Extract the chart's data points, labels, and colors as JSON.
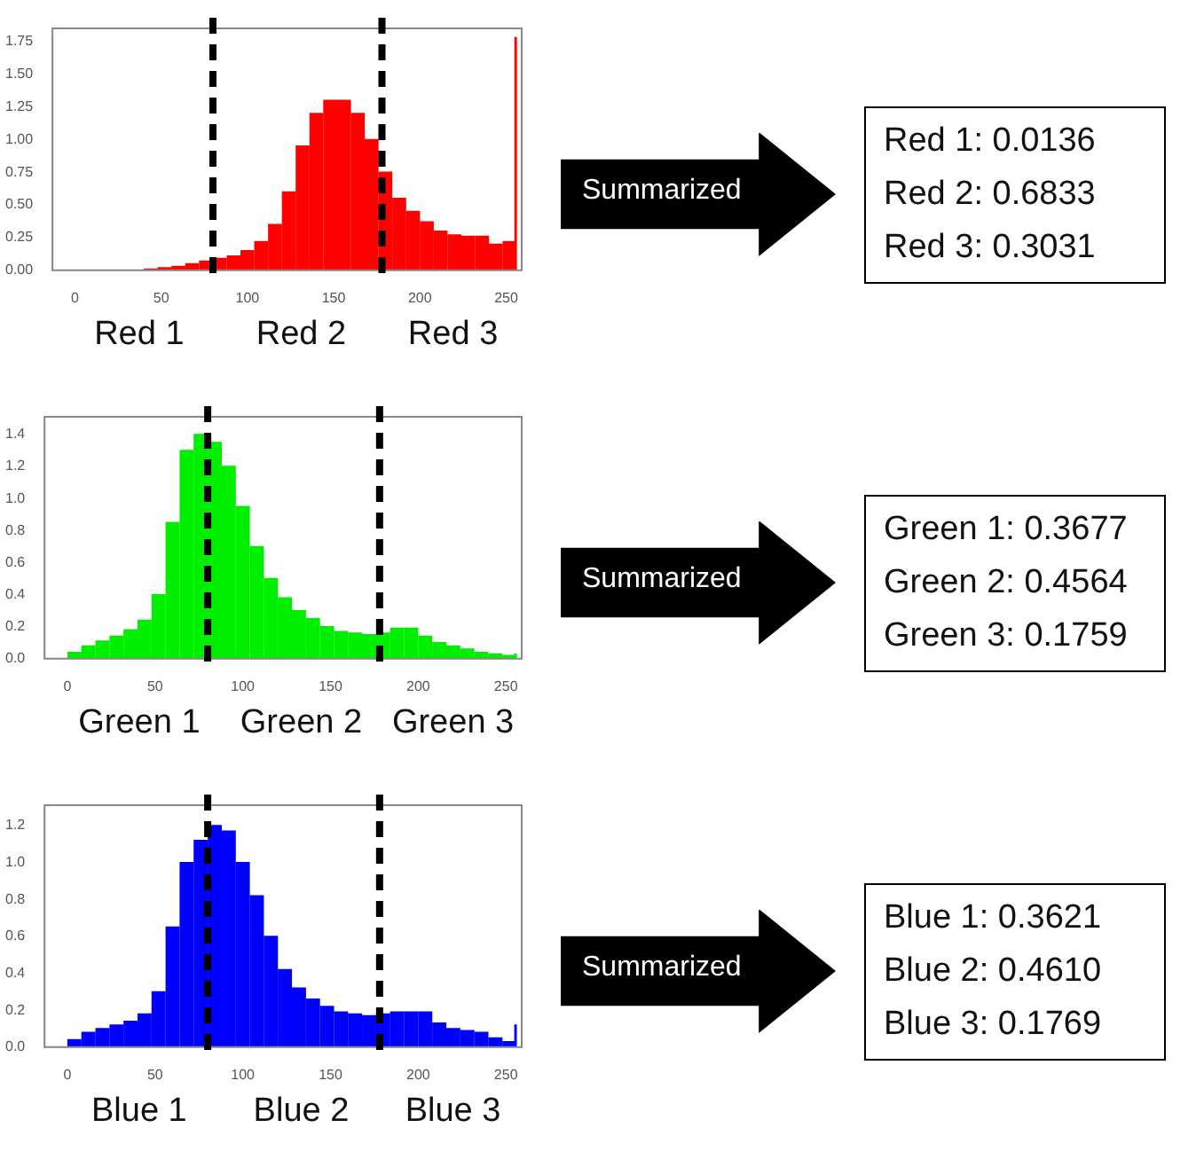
{
  "chart_data": [
    {
      "type": "histogram",
      "bins": [
        0,
        8,
        16,
        24,
        32,
        40,
        48,
        56,
        64,
        72,
        80,
        88,
        96,
        104,
        112,
        120,
        128,
        136,
        144,
        152,
        160,
        168,
        176,
        184,
        192,
        200,
        208,
        216,
        224,
        232,
        240,
        248,
        255,
        256
      ],
      "values": [
        0,
        0,
        0,
        0,
        0,
        0.01,
        0.02,
        0.03,
        0.05,
        0.07,
        0.09,
        0.11,
        0.15,
        0.22,
        0.35,
        0.6,
        0.95,
        1.2,
        1.3,
        1.3,
        1.2,
        1.0,
        0.75,
        0.55,
        0.45,
        0.37,
        0.3,
        0.27,
        0.26,
        0.26,
        0.2,
        0.22,
        1.78
      ],
      "color": "#ff0000",
      "xlim": [
        -13,
        259
      ],
      "xticks": [
        0,
        50,
        100,
        150,
        200,
        250
      ],
      "ylim": [
        0,
        1.85
      ],
      "yticks": [
        {
          "value": 0,
          "label": "0.00"
        },
        {
          "value": 0.25,
          "label": "0.25"
        },
        {
          "value": 0.5,
          "label": "0.50"
        },
        {
          "value": 0.75,
          "label": "0.75"
        },
        {
          "value": 1,
          "label": "1.00"
        },
        {
          "value": 1.25,
          "label": "1.25"
        },
        {
          "value": 1.5,
          "label": "1.50"
        },
        {
          "value": 1.75,
          "label": "1.75"
        }
      ],
      "ref_lines": [
        {
          "axis": "x",
          "value": 80,
          "color": "#000000",
          "line_style": "dashed"
        },
        {
          "axis": "x",
          "value": 178,
          "color": "#000000",
          "line_style": "dashed"
        }
      ],
      "annotations": [
        "Red 1",
        "Red 2",
        "Red 3"
      ]
    },
    {
      "type": "other",
      "annotations": [
        "Summarized",
        "Red 1: 0.0136",
        "Red 2: 0.6833",
        "Red 3: 0.3031"
      ]
    },
    {
      "type": "histogram",
      "bins": [
        0,
        8,
        16,
        24,
        32,
        40,
        48,
        56,
        64,
        72,
        80,
        88,
        96,
        104,
        112,
        120,
        128,
        136,
        144,
        152,
        160,
        168,
        176,
        184,
        192,
        200,
        208,
        216,
        224,
        232,
        240,
        248,
        255,
        256
      ],
      "values": [
        0.04,
        0.08,
        0.11,
        0.14,
        0.18,
        0.24,
        0.4,
        0.85,
        1.3,
        1.4,
        1.35,
        1.2,
        0.95,
        0.7,
        0.5,
        0.38,
        0.3,
        0.25,
        0.2,
        0.17,
        0.16,
        0.15,
        0.16,
        0.19,
        0.19,
        0.14,
        0.1,
        0.08,
        0.06,
        0.04,
        0.03,
        0.02,
        0.03
      ],
      "color": "#00ee00",
      "xlim": [
        -13,
        259
      ],
      "xticks": [
        0,
        50,
        100,
        150,
        200,
        250
      ],
      "ylim": [
        0,
        1.51
      ],
      "yticks": [
        {
          "value": 0,
          "label": "0.0"
        },
        {
          "value": 0.2,
          "label": "0.2"
        },
        {
          "value": 0.4,
          "label": "0.4"
        },
        {
          "value": 0.6,
          "label": "0.6"
        },
        {
          "value": 0.8,
          "label": "0.8"
        },
        {
          "value": 1,
          "label": "1.0"
        },
        {
          "value": 1.2,
          "label": "1.2"
        },
        {
          "value": 1.4,
          "label": "1.4"
        }
      ],
      "ref_lines": [
        {
          "axis": "x",
          "value": 80,
          "color": "#000000",
          "line_style": "dashed"
        },
        {
          "axis": "x",
          "value": 178,
          "color": "#000000",
          "line_style": "dashed"
        }
      ],
      "annotations": [
        "Green 1",
        "Green 2",
        "Green 3"
      ]
    },
    {
      "type": "other",
      "annotations": [
        "Summarized",
        "Green 1: 0.3677",
        "Green 2: 0.4564",
        "Green 3: 0.1759"
      ]
    },
    {
      "type": "histogram",
      "bins": [
        0,
        8,
        16,
        24,
        32,
        40,
        48,
        56,
        64,
        72,
        80,
        88,
        96,
        104,
        112,
        120,
        128,
        136,
        144,
        152,
        160,
        168,
        176,
        184,
        192,
        200,
        208,
        216,
        224,
        232,
        240,
        248,
        255,
        256
      ],
      "values": [
        0.04,
        0.08,
        0.1,
        0.12,
        0.14,
        0.18,
        0.3,
        0.65,
        1.0,
        1.12,
        1.2,
        1.17,
        1.0,
        0.82,
        0.6,
        0.42,
        0.32,
        0.26,
        0.22,
        0.19,
        0.18,
        0.17,
        0.18,
        0.19,
        0.19,
        0.19,
        0.13,
        0.1,
        0.09,
        0.08,
        0.05,
        0.03,
        0.12
      ],
      "color": "#0000ff",
      "xlim": [
        -13,
        259
      ],
      "xticks": [
        0,
        50,
        100,
        150,
        200,
        250
      ],
      "ylim": [
        0,
        1.31
      ],
      "yticks": [
        {
          "value": 0,
          "label": "0.0"
        },
        {
          "value": 0.2,
          "label": "0.2"
        },
        {
          "value": 0.4,
          "label": "0.4"
        },
        {
          "value": 0.6,
          "label": "0.6"
        },
        {
          "value": 0.8,
          "label": "0.8"
        },
        {
          "value": 1,
          "label": "1.0"
        },
        {
          "value": 1.2,
          "label": "1.2"
        }
      ],
      "ref_lines": [
        {
          "axis": "x",
          "value": 80,
          "color": "#000000",
          "line_style": "dashed"
        },
        {
          "axis": "x",
          "value": 178,
          "color": "#000000",
          "line_style": "dashed"
        }
      ],
      "annotations": [
        "Blue 1",
        "Blue 2",
        "Blue 3"
      ]
    },
    {
      "type": "other",
      "annotations": [
        "Summarized",
        "Blue 1: 0.3621",
        "Blue 2: 0.4610",
        "Blue 3: 0.1769"
      ]
    }
  ]
}
